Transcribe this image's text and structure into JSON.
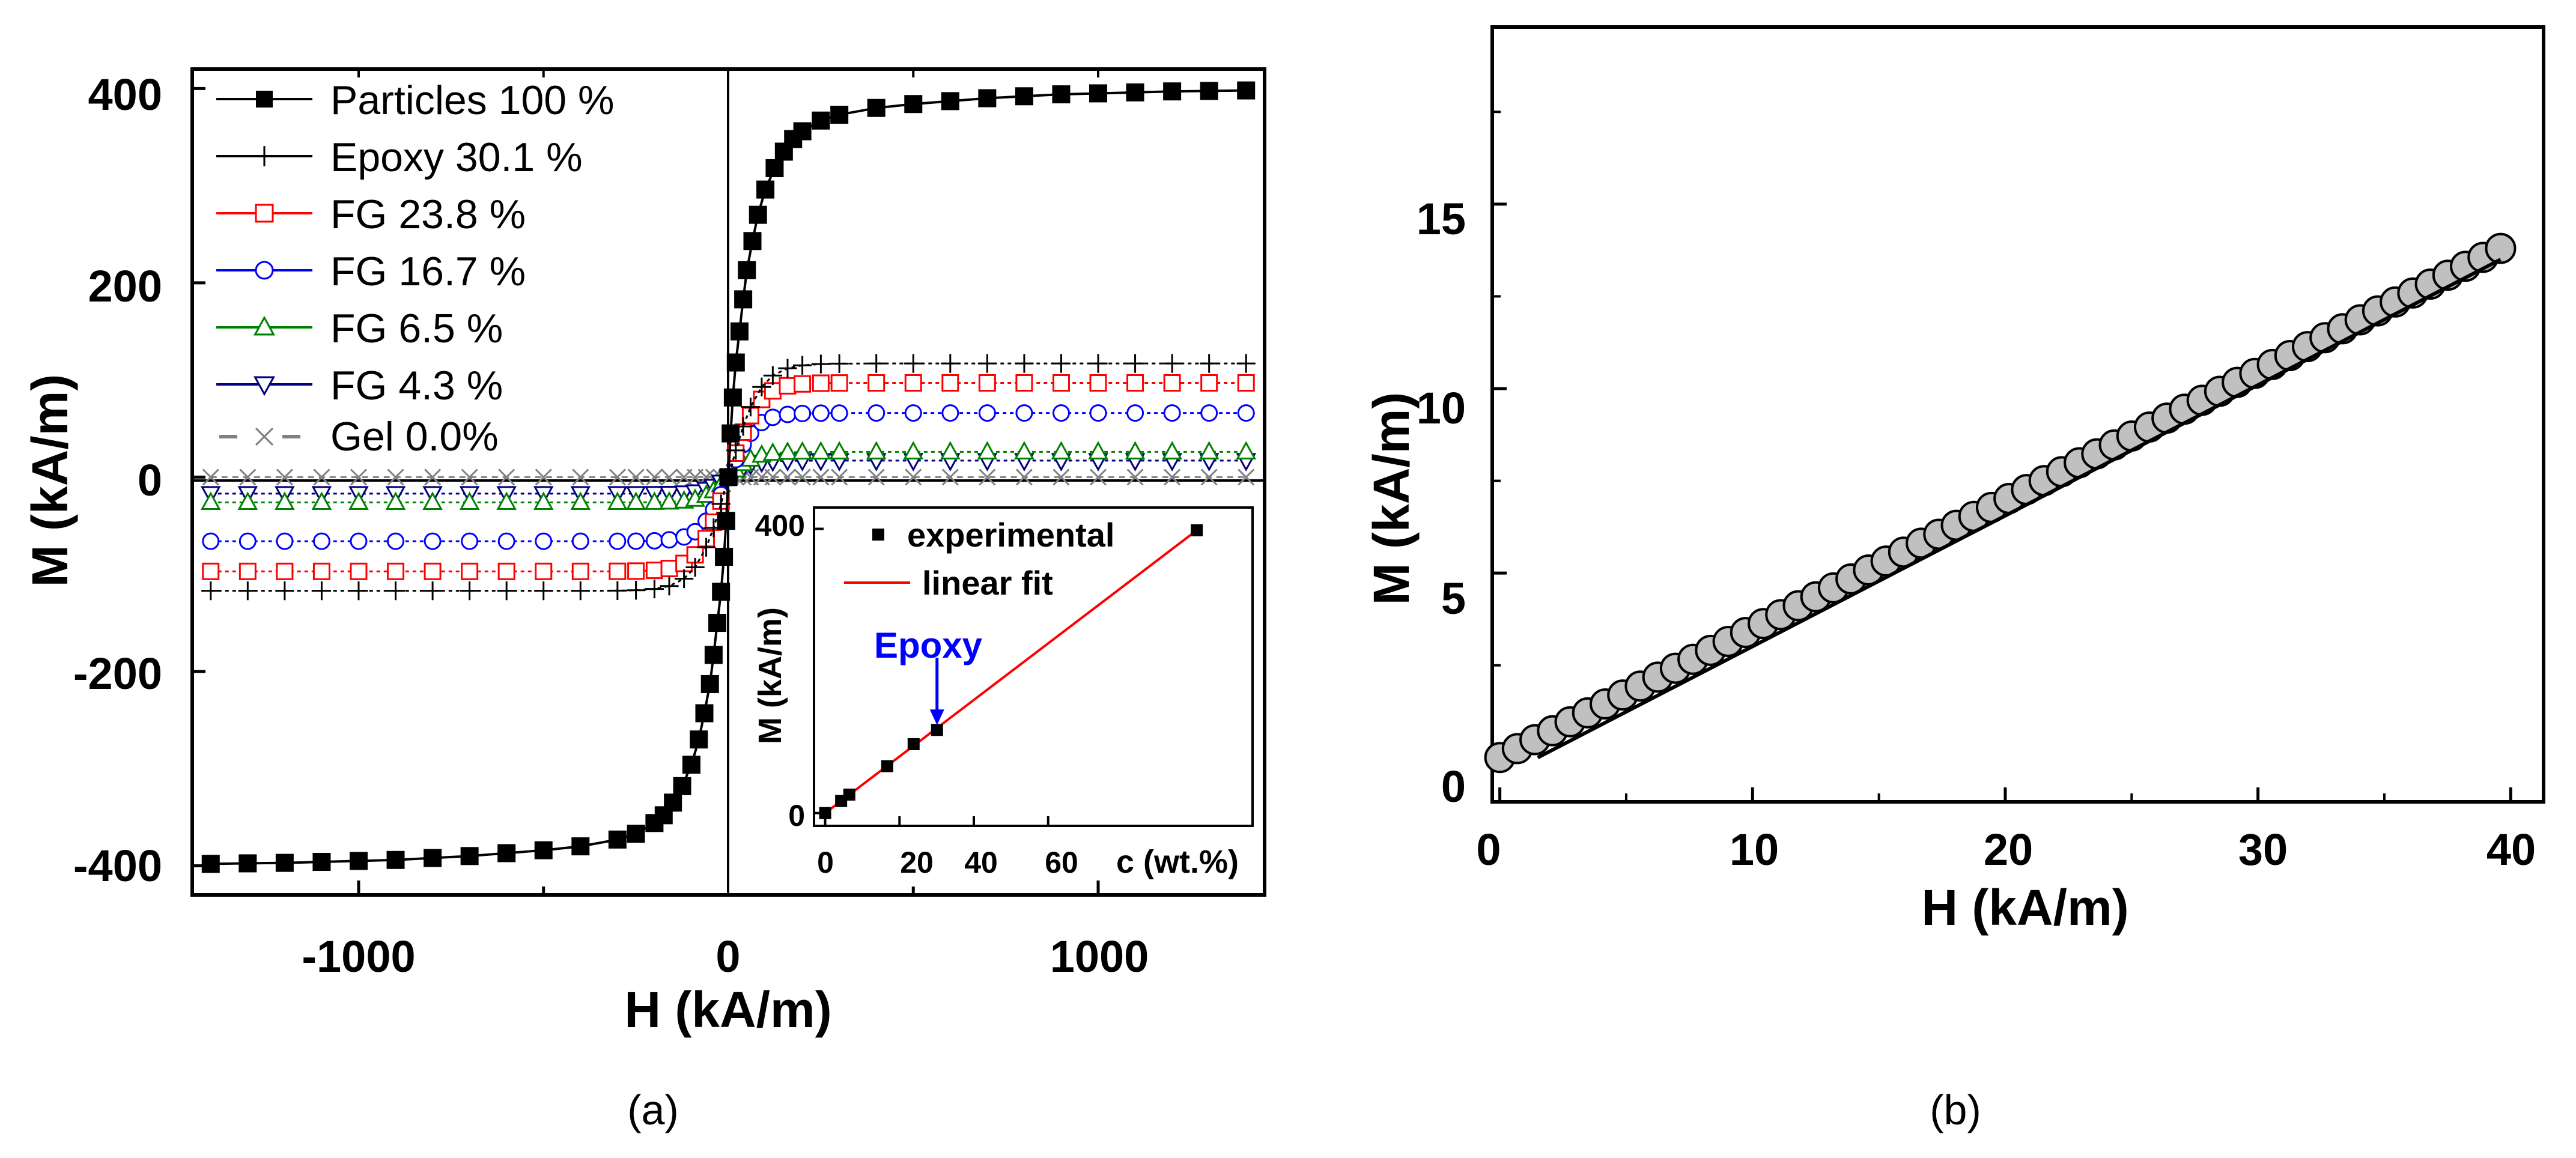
{
  "chart_data": [
    {
      "id": "a",
      "type": "line",
      "caption": "(a)",
      "xlabel": "H (kA/m)",
      "ylabel": "M (kA/m)",
      "xlim": [
        -1450,
        1450
      ],
      "ylim": [
        -430,
        420
      ],
      "xticks": [
        -1000,
        0,
        1000
      ],
      "yticks": [
        -400,
        -200,
        0,
        200,
        400
      ],
      "xtick_labels": [
        "-1000",
        "0",
        "1000"
      ],
      "ytick_labels": [
        "-400",
        "-200",
        "0",
        "200",
        "400"
      ],
      "legend_position": "top-left",
      "series": [
        {
          "name": "Particles 100 %",
          "marker": "square-filled",
          "color": "#000000",
          "ms": 400,
          "k": 0.01,
          "values": [
            [
              -1400,
              -398
            ],
            [
              -1300,
              -397.5
            ],
            [
              -1200,
              -397
            ],
            [
              -1100,
              -396
            ],
            [
              -1000,
              -395
            ],
            [
              -900,
              -394
            ],
            [
              -800,
              -392
            ],
            [
              -700,
              -390
            ],
            [
              -600,
              -387
            ],
            [
              -500,
              -384
            ],
            [
              -400,
              -380
            ],
            [
              -300,
              -373
            ],
            [
              -250,
              -367
            ],
            [
              -200,
              -356
            ],
            [
              -175,
              -348
            ],
            [
              -150,
              -335
            ],
            [
              -125,
              -318
            ],
            [
              -100,
              -296
            ],
            [
              -80,
              -270
            ],
            [
              -65,
              -243
            ],
            [
              -50,
              -213
            ],
            [
              -40,
              -183
            ],
            [
              -30,
              -150
            ],
            [
              -20,
              -118
            ],
            [
              -12,
              -82
            ],
            [
              -6,
              -45
            ],
            [
              0,
              0
            ],
            [
              6,
              45
            ],
            [
              12,
              82
            ],
            [
              20,
              118
            ],
            [
              30,
              150
            ],
            [
              40,
              183
            ],
            [
              50,
              213
            ],
            [
              65,
              243
            ],
            [
              80,
              270
            ],
            [
              100,
              296
            ],
            [
              125,
              318
            ],
            [
              150,
              335
            ],
            [
              175,
              348
            ],
            [
              200,
              356
            ],
            [
              250,
              367
            ],
            [
              300,
              373
            ],
            [
              400,
              380
            ],
            [
              500,
              384
            ],
            [
              600,
              387
            ],
            [
              700,
              390
            ],
            [
              800,
              392
            ],
            [
              900,
              394
            ],
            [
              1000,
              395
            ],
            [
              1100,
              396
            ],
            [
              1200,
              397
            ],
            [
              1300,
              397.5
            ],
            [
              1400,
              398
            ]
          ]
        },
        {
          "name": "Epoxy 30.1 %",
          "marker": "plus",
          "color": "#000000",
          "ms": 117,
          "k": 0.012
        },
        {
          "name": "FG 23.8 %",
          "marker": "square-open",
          "color": "#ff0000",
          "ms": 97,
          "k": 0.013
        },
        {
          "name": "FG 16.7 %",
          "marker": "circle-open",
          "color": "#0000ff",
          "ms": 66,
          "k": 0.014
        },
        {
          "name": "FG 6.5 %",
          "marker": "triangle-up-open",
          "color": "#008000",
          "ms": 26,
          "k": 0.015
        },
        {
          "name": "FG 4.3 %",
          "marker": "triangle-down-open",
          "color": "#000080",
          "ms": 17,
          "k": 0.016
        },
        {
          "name": "Gel 0.0%",
          "marker": "cross",
          "color": "#808080",
          "ms": 0,
          "k": 0.01
        }
      ],
      "inset": {
        "xlabel": "c (wt.%)",
        "ylabel": "M (kA/m)",
        "xlim": [
          -3,
          115
        ],
        "ylim": [
          -18,
          430
        ],
        "xticks": [
          0,
          20,
          40,
          60
        ],
        "xtick_labels": [
          "0",
          "20",
          "40",
          "60"
        ],
        "yticks": [
          0,
          400
        ],
        "ytick_labels": [
          "0",
          "400"
        ],
        "legend": [
          "experimental",
          "linear fit"
        ],
        "fit_color": "#ff0000",
        "experimental": [
          [
            0,
            0
          ],
          [
            4.3,
            17
          ],
          [
            6.5,
            26
          ],
          [
            16.7,
            66
          ],
          [
            23.8,
            97
          ],
          [
            30.1,
            117
          ],
          [
            100,
            398
          ]
        ],
        "fit": [
          [
            0,
            0
          ],
          [
            100,
            398
          ]
        ],
        "annotation": {
          "text": "Epoxy",
          "x": 30.1,
          "y": 117,
          "color": "#0000ff"
        }
      }
    },
    {
      "id": "b",
      "type": "scatter",
      "caption": "(b)",
      "xlabel": "H (kA/m)",
      "ylabel": "M (kA/m)",
      "xlim": [
        -0.3,
        41.3
      ],
      "ylim": [
        -1.2,
        19.8
      ],
      "xticks": [
        0,
        10,
        20,
        30,
        40
      ],
      "xtick_labels": [
        "0",
        "10",
        "20",
        "30",
        "40"
      ],
      "yticks": [
        0,
        5,
        10,
        15
      ],
      "ytick_labels": [
        "0",
        "5",
        "10",
        "15"
      ],
      "marker_color": "#c0c0c0",
      "series": [
        {
          "name": "measured",
          "x_start": 0,
          "x_end": 39.6,
          "count": 58,
          "y_start": 0,
          "y_end": 13.8
        }
      ],
      "fit_line": [
        [
          1.5,
          0
        ],
        [
          39.6,
          13.5
        ]
      ]
    }
  ]
}
